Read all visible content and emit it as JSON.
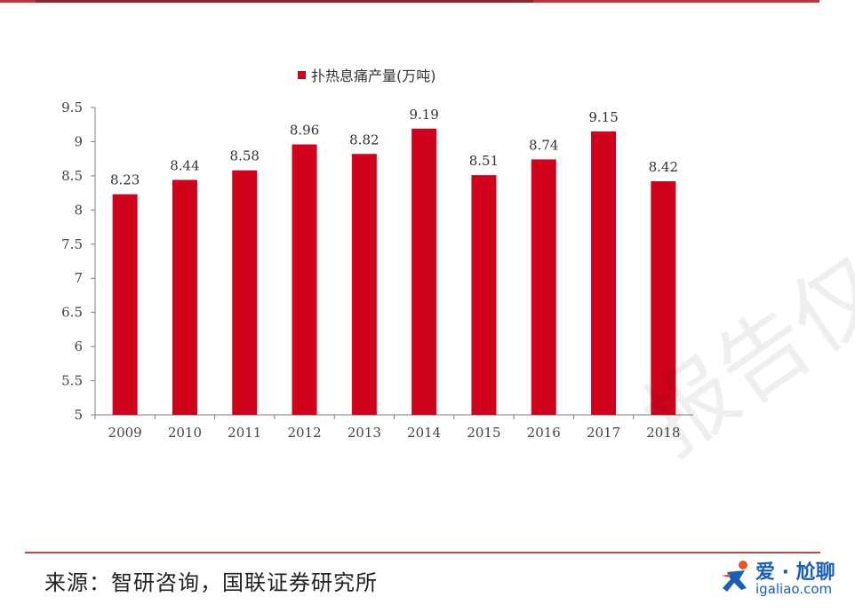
{
  "chart_data": {
    "type": "bar",
    "categories": [
      "2009",
      "2010",
      "2011",
      "2012",
      "2013",
      "2014",
      "2015",
      "2016",
      "2017",
      "2018"
    ],
    "series": [
      {
        "name": "扑热息痛产量(万吨)",
        "values": [
          8.23,
          8.44,
          8.58,
          8.96,
          8.82,
          9.19,
          8.51,
          8.74,
          9.15,
          8.42
        ],
        "color": "#d0021b"
      }
    ],
    "data_labels": [
      "8.23",
      "8.44",
      "8.58",
      "8.96",
      "8.82",
      "9.19",
      "8.51",
      "8.74",
      "9.15",
      "8.42"
    ],
    "yticks": [
      "5",
      "5.5",
      "6",
      "6.5",
      "7",
      "7.5",
      "8",
      "8.5",
      "9",
      "9.5"
    ],
    "ylim": [
      5,
      9.5
    ],
    "grid": false,
    "legend_position": "top"
  },
  "footer": {
    "source": "来源：智研咨询，国联证券研究所"
  },
  "watermark": "报告仅供",
  "logo": {
    "cn": "爱 · 尬聊",
    "en": "igaliao.com",
    "icon": "figure-logo-icon",
    "color": "#1a5fb4"
  }
}
